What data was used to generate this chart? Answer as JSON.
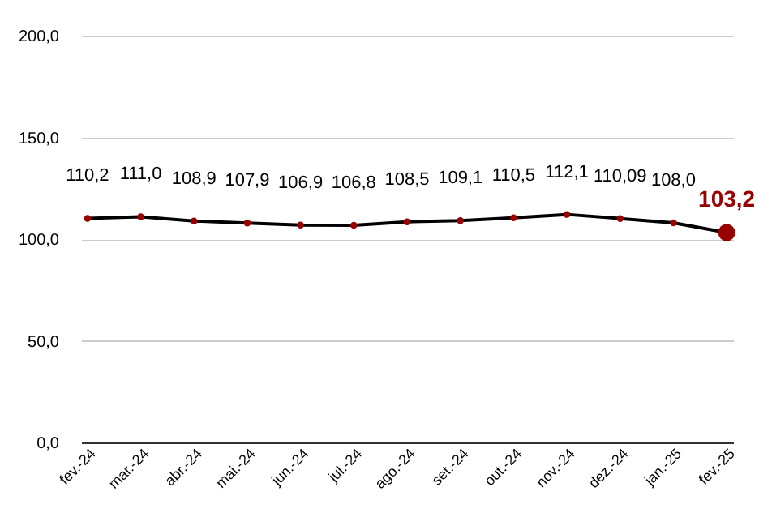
{
  "chart_data": {
    "type": "line",
    "categories": [
      "fev.-24",
      "mar.-24",
      "abr.-24",
      "mai.-24",
      "jun.-24",
      "jul.-24",
      "ago.-24",
      "set.-24",
      "out.-24",
      "nov.-24",
      "dez.-24",
      "jan.-25",
      "fev.-25"
    ],
    "series": [
      {
        "color": "#000000",
        "colors": [
          "#990000",
          "#990000",
          "#990000",
          "#990000",
          "#990000",
          "#990000",
          "#990000",
          "#990000",
          "#990000",
          "#990000",
          "#990000",
          "#990000",
          "#990000"
        ],
        "values": [
          110.2,
          111.0,
          108.9,
          107.9,
          106.9,
          106.8,
          108.5,
          109.1,
          110.5,
          112.1,
          110.09,
          108.0,
          103.2
        ],
        "value_labels": [
          "110,2",
          "111,0",
          "108,9",
          "107,9",
          "106,9",
          "106,8",
          "108,5",
          "109,1",
          "110,5",
          "112,1",
          "110,09",
          "108,0",
          null
        ]
      },
      {
        "type": "scatter",
        "color": "#990000",
        "x": [
          "fev.-25"
        ],
        "values": [
          103.2
        ],
        "value_labels": [
          "103,2"
        ]
      }
    ],
    "ylim": [
      0,
      200
    ],
    "yticks": [
      {
        "value": 0,
        "label": "0,0"
      },
      {
        "value": 50,
        "label": "50,0"
      },
      {
        "value": 100,
        "label": "100,0"
      },
      {
        "value": 150,
        "label": "150,0"
      },
      {
        "value": 200,
        "label": "200,0"
      }
    ],
    "grid": "y",
    "marker": "circle",
    "line_style": "solid"
  }
}
